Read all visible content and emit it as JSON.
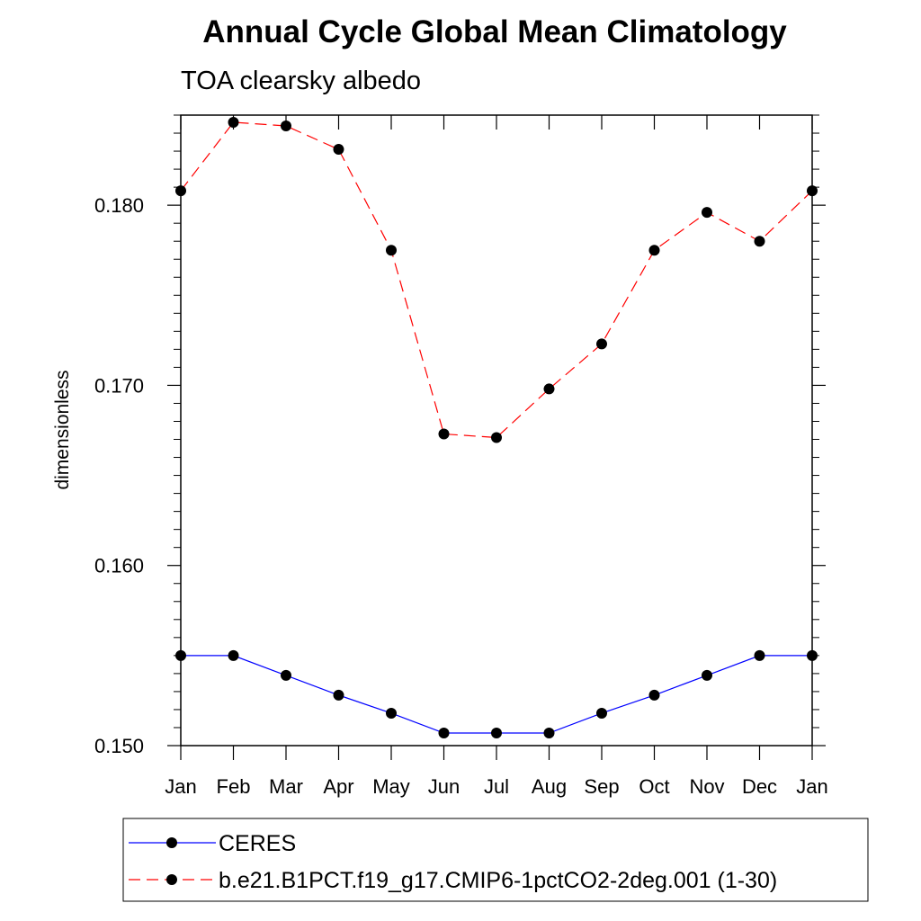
{
  "chart_data": {
    "type": "line",
    "title": "Annual Cycle Global Mean Climatology",
    "subtitle": "TOA clearsky albedo",
    "xlabel": "",
    "ylabel": "dimensionless",
    "categories": [
      "Jan",
      "Feb",
      "Mar",
      "Apr",
      "May",
      "Jun",
      "Jul",
      "Aug",
      "Sep",
      "Oct",
      "Nov",
      "Dec",
      "Jan"
    ],
    "ylim": [
      0.15,
      0.185
    ],
    "yticks": [
      0.15,
      0.16,
      0.17,
      0.18
    ],
    "ytick_labels": [
      "0.150",
      "0.160",
      "0.170",
      "0.180"
    ],
    "grid": false,
    "legend_position": "bottom",
    "series": [
      {
        "name": "CERES",
        "color": "#0000ff",
        "line_style": "solid",
        "marker": "filled-circle",
        "values": [
          0.155,
          0.155,
          0.1539,
          0.1528,
          0.1518,
          0.1507,
          0.1507,
          0.1507,
          0.1518,
          0.1528,
          0.1539,
          0.155,
          0.155
        ]
      },
      {
        "name": "b.e21.B1PCT.f19_g17.CMIP6-1pctCO2-2deg.001 (1-30)",
        "color": "#ff0000",
        "line_style": "dashed",
        "marker": "filled-circle",
        "values": [
          0.1808,
          0.1846,
          0.1844,
          0.1831,
          0.1775,
          0.1673,
          0.1671,
          0.1698,
          0.1723,
          0.1775,
          0.1796,
          0.178,
          0.1808
        ]
      }
    ]
  }
}
